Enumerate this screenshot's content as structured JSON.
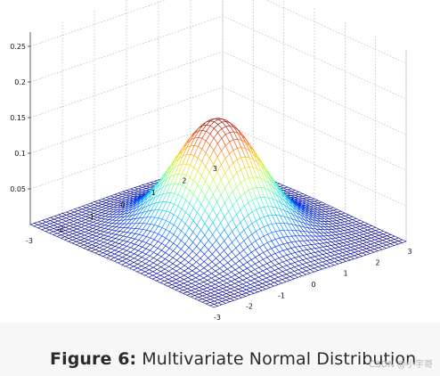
{
  "chart_data": {
    "type": "surface",
    "title": "",
    "function": "bivariate standard normal density",
    "x_range": [
      -3,
      3
    ],
    "y_range": [
      -3,
      3
    ],
    "z_range": [
      0,
      0.25
    ],
    "x_ticks": [
      "-3",
      "-2",
      "-1",
      "0",
      "1",
      "2",
      "3"
    ],
    "y_ticks": [
      "-3",
      "-2",
      "-1",
      "0",
      "1",
      "2",
      "3"
    ],
    "z_ticks": [
      "0.05",
      "0.1",
      "0.15",
      "0.2",
      "0.25"
    ],
    "peak_value": 0.159,
    "grid": true,
    "colormap": [
      "#00008f",
      "#0040ff",
      "#00c0ff",
      "#40ffbf",
      "#c0ff40",
      "#ffbf00",
      "#ff4000",
      "#8f0000"
    ]
  },
  "caption": {
    "label": "Figure 6:",
    "text": "Multivariate Normal Distribution"
  },
  "watermark": "CSDN @小宇哥"
}
